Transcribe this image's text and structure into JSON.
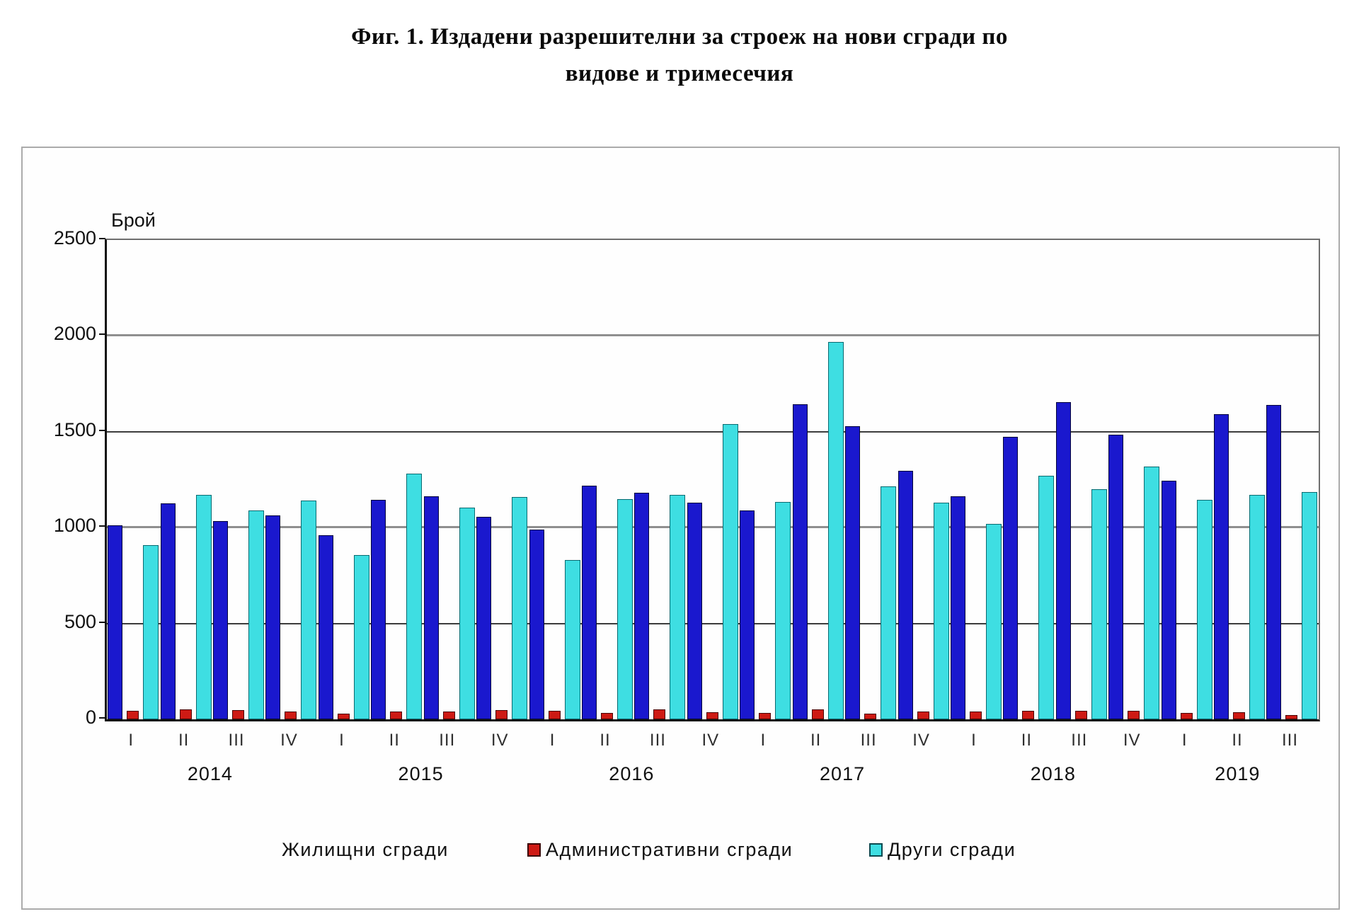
{
  "title": {
    "line1": "Фиг. 1. Издадени разрешителни за строеж на нови сгради по",
    "line2": "видове и тримесечия"
  },
  "y_axis": {
    "label": "Брой",
    "ticks": [
      2500,
      2000,
      1500,
      1000,
      500,
      0
    ]
  },
  "legend": [
    {
      "label": "Жилищни сгради",
      "color": "#1a18ce",
      "swatch_visible": false
    },
    {
      "label": "Административни  сгради",
      "color": "#ce1a14",
      "swatch_visible": true
    },
    {
      "label": "Други сгради",
      "color": "#3edee2",
      "swatch_visible": true
    }
  ],
  "colors": {
    "residential": "#1a18ce",
    "administrative": "#ce1a14",
    "other": "#3edee2",
    "grid_major": "#8f8f8f",
    "grid_minor": "#3c3c3c",
    "axis": "#111111",
    "frame_border": "#ababab"
  },
  "chart_data": {
    "type": "bar",
    "title": "Фиг. 1. Издадени разрешителни за строеж на нови сгради по видове и тримесечия",
    "xlabel": "",
    "ylabel": "Брой",
    "ylim": [
      0,
      2500
    ],
    "grid": true,
    "gridlines_major": [
      1000,
      2000
    ],
    "gridlines_minor": [
      500,
      1500
    ],
    "legend_position": "bottom",
    "categories": [
      "I",
      "II",
      "III",
      "IV",
      "I",
      "II",
      "III",
      "IV",
      "I",
      "II",
      "III",
      "IV",
      "I",
      "II",
      "III",
      "IV",
      "I",
      "II",
      "III",
      "IV",
      "I",
      "II",
      "III"
    ],
    "year_groups": [
      {
        "label": "2014",
        "count": 4
      },
      {
        "label": "2015",
        "count": 4
      },
      {
        "label": "2016",
        "count": 4
      },
      {
        "label": "2017",
        "count": 4
      },
      {
        "label": "2018",
        "count": 4
      },
      {
        "label": "2019",
        "count": 3
      }
    ],
    "series": [
      {
        "name": "Жилищни сгради",
        "color": "#1a18ce",
        "values": [
          1010,
          1125,
          1035,
          1065,
          960,
          1145,
          1165,
          1055,
          990,
          1220,
          1180,
          1130,
          1090,
          1645,
          1530,
          1295,
          1165,
          1475,
          1655,
          1485,
          1245,
          1590,
          1640
        ]
      },
      {
        "name": "Административни сгради",
        "color": "#ce1a14",
        "values": [
          45,
          50,
          48,
          42,
          28,
          42,
          40,
          47,
          43,
          33,
          50,
          37,
          35,
          50,
          31,
          40,
          40,
          45,
          45,
          45,
          33,
          38,
          24
        ]
      },
      {
        "name": "Други сгради",
        "color": "#3edee2",
        "values": [
          910,
          1170,
          1090,
          1140,
          855,
          1280,
          1105,
          1160,
          830,
          1150,
          1170,
          1540,
          1135,
          1970,
          1215,
          1130,
          1020,
          1270,
          1200,
          1320,
          1145,
          1170,
          1185
        ]
      }
    ]
  }
}
